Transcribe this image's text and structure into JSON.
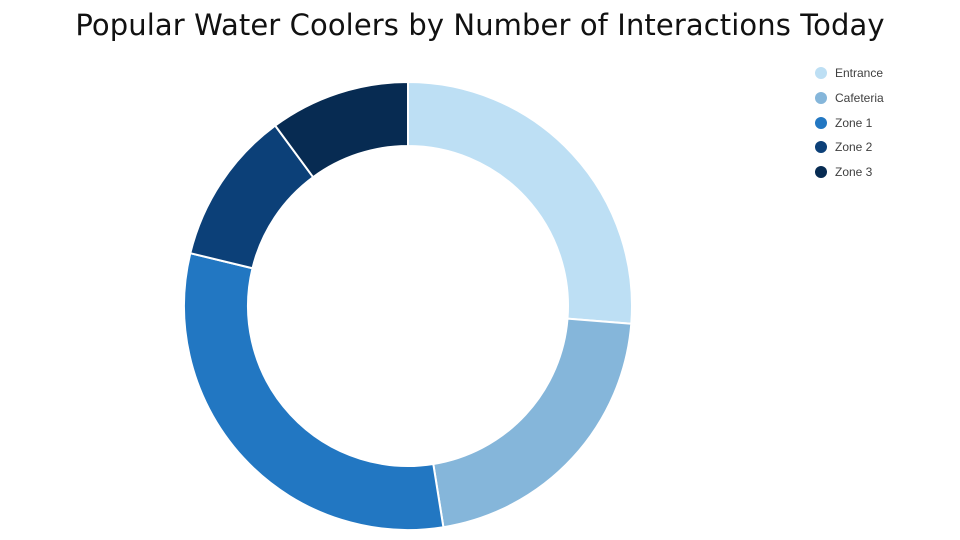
{
  "chart_data": {
    "type": "pie",
    "donut": true,
    "title": "Popular Water Coolers by Number of Interactions Today",
    "categories": [
      "Entrance",
      "Cafeteria",
      "Zone 1",
      "Zone 2",
      "Zone 3"
    ],
    "values": [
      26,
      21,
      31,
      11,
      10
    ],
    "colors": [
      "#bddff4",
      "#85b6da",
      "#2277c2",
      "#0c4078",
      "#072b52"
    ],
    "legend": "top-right"
  }
}
